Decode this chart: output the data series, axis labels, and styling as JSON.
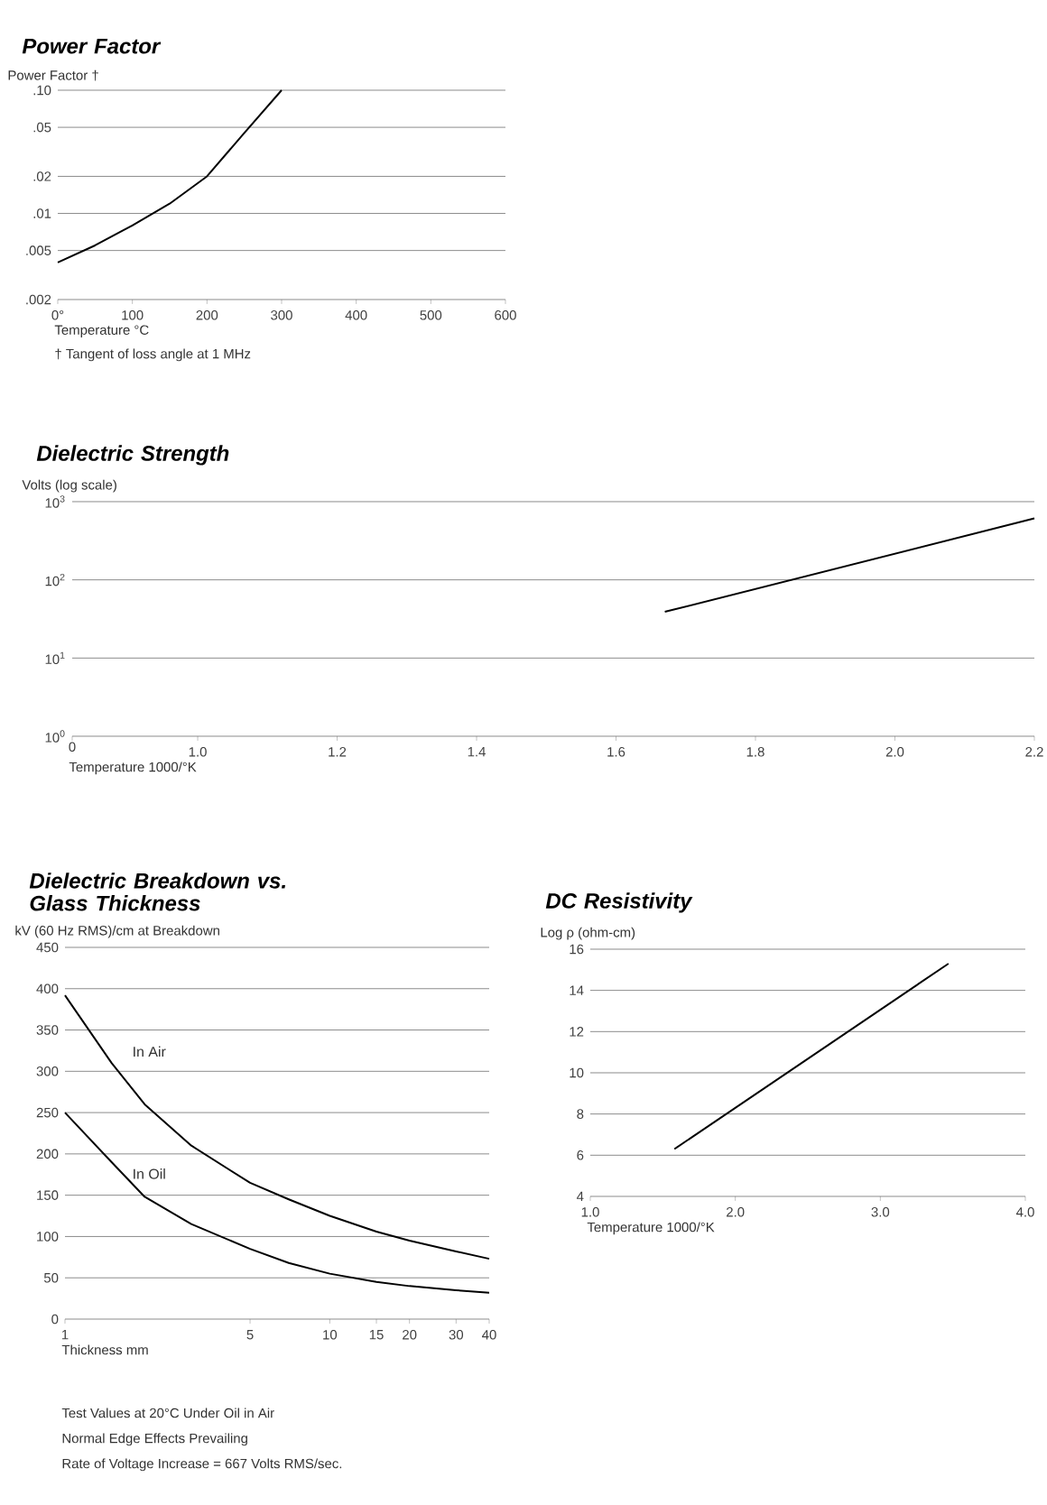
{
  "chart_data": [
    {
      "type": "line",
      "title": "Power Factor",
      "ylabel": "Power Factor †",
      "xlabel": "Temperature °C",
      "annotations": [
        "† Tangent of loss angle at 1 MHz"
      ],
      "log": "y",
      "grid": "y",
      "marker": "none",
      "line_style": "solid",
      "xlim": [
        0,
        600
      ],
      "xticks": [
        {
          "value": 0,
          "label": "0°"
        },
        100,
        200,
        300,
        400,
        500,
        600
      ],
      "ylim": [
        0.002,
        0.1
      ],
      "yticks": [
        {
          "value": 0.002,
          "label": ".002"
        },
        {
          "value": 0.005,
          "label": ".005"
        },
        {
          "value": 0.01,
          "label": ".01"
        },
        {
          "value": 0.02,
          "label": ".02"
        },
        {
          "value": 0.05,
          "label": ".05"
        },
        {
          "value": 0.1,
          "label": ".10"
        }
      ],
      "x": [
        0,
        50,
        100,
        150,
        200,
        250,
        300
      ],
      "series": [
        {
          "color": "#000000",
          "values": [
            0.004,
            0.0055,
            0.008,
            0.012,
            0.02,
            0.045,
            0.1
          ]
        }
      ]
    },
    {
      "type": "line",
      "title": "Dielectric Strength",
      "ylabel": "Volts (log scale)",
      "xlabel": "Temperature 1000/°K",
      "log": "y",
      "grid": "y",
      "marker": "none",
      "line_style": "solid",
      "annotations": [
        "0"
      ],
      "xlim": [
        0.82,
        2.2
      ],
      "xticks": [
        {
          "value": 0.82,
          "label": null
        },
        {
          "value": 1.0,
          "label": "1.0"
        },
        {
          "value": 1.2,
          "label": "1.2"
        },
        {
          "value": 1.4,
          "label": "1.4"
        },
        {
          "value": 1.6,
          "label": "1.6"
        },
        {
          "value": 1.8,
          "label": "1.8"
        },
        {
          "value": 2.0,
          "label": "2.0"
        },
        {
          "value": 2.2,
          "label": "2.2"
        }
      ],
      "ylim": [
        1,
        1000
      ],
      "yticks": [
        {
          "value": 1,
          "label": "10$^{0}$"
        },
        {
          "value": 10,
          "label": "10$^{1}$"
        },
        {
          "value": 100,
          "label": "10$^{2}$"
        },
        {
          "value": 1000,
          "label": "10$^{3}$"
        }
      ],
      "x": [
        1.67,
        2.2
      ],
      "series": [
        {
          "color": "#000000",
          "values": [
            39,
            610
          ]
        }
      ]
    },
    {
      "type": "line",
      "title": "Dielectric Breakdown vs. Glass Thickness",
      "ylabel": "kV (60 Hz RMS)/cm at Breakdown",
      "xlabel": "Thickness mm",
      "annotations": [
        "Test Values at 20°C Under Oil in Air",
        "Normal Edge Effects Prevailing",
        "Rate of Voltage Increase = 667  Volts RMS/sec."
      ],
      "log": "x",
      "grid": "y",
      "marker": "none",
      "line_style": "solid",
      "xlim": [
        1,
        40
      ],
      "xticks": [
        1,
        5,
        10,
        15,
        20,
        30,
        40
      ],
      "ylim": [
        0,
        450
      ],
      "yticks": [
        0,
        50,
        100,
        150,
        200,
        250,
        300,
        350,
        400,
        450
      ],
      "x": [
        1,
        1.5,
        2,
        3,
        5,
        7,
        10,
        15,
        20,
        30,
        40
      ],
      "series": [
        {
          "name": "In Air",
          "color": "#000000",
          "values": [
            392,
            310,
            260,
            210,
            165,
            145,
            125,
            106,
            95,
            82,
            73
          ]
        },
        {
          "name": "In Oil",
          "color": "#000000",
          "values": [
            250,
            190,
            148,
            115,
            85,
            68,
            55,
            45,
            40,
            35,
            32
          ]
        }
      ]
    },
    {
      "type": "line",
      "title": "DC Resistivity",
      "ylabel": "Log ρ (ohm-cm)",
      "xlabel": "Temperature 1000/°K",
      "grid": "y",
      "marker": "none",
      "line_style": "solid",
      "xlim": [
        1,
        4
      ],
      "xticks": [
        {
          "value": 1,
          "label": "1.0"
        },
        {
          "value": 2,
          "label": "2.0"
        },
        {
          "value": 3,
          "label": "3.0"
        },
        {
          "value": 4,
          "label": "4.0"
        }
      ],
      "ylim": [
        4,
        16
      ],
      "yticks": [
        4,
        6,
        8,
        10,
        12,
        14,
        16
      ],
      "x": [
        1.58,
        3.47
      ],
      "series": [
        {
          "color": "#000000",
          "values": [
            6.3,
            15.3
          ]
        }
      ]
    }
  ]
}
